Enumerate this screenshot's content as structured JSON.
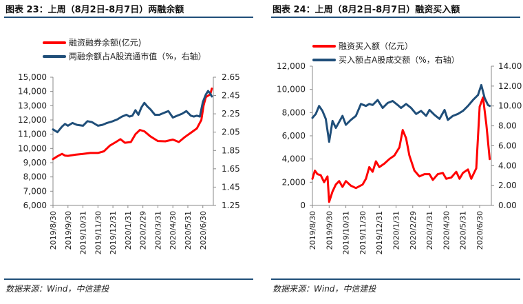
{
  "charts": [
    {
      "title": "图表 23：上周（8月2日-8月7日）两融余额",
      "source": "数据来源：Wind，中信建投",
      "chart_data": {
        "type": "line",
        "x": [
          "2019/8/30",
          "2019/9/30",
          "2019/10/31",
          "2019/11/30",
          "2019/12/31",
          "2020/1/31",
          "2020/2/29",
          "2020/3/31",
          "2020/4/30",
          "2020/5/31",
          "2020/6/30"
        ],
        "xlabels": [
          "2019/8/30",
          "2019/9/30",
          "2019/10/31",
          "2019/11/30",
          "2019/12/31",
          "2020/1/31",
          "2020/2/29",
          "2020/3/31",
          "2020/4/30",
          "2020/5/31",
          "2020/6/30"
        ],
        "yticks_left": [
          "6,000",
          "7,000",
          "8,000",
          "9,000",
          "10,000",
          "11,000",
          "12,000",
          "13,000",
          "14,000",
          "15,000"
        ],
        "yticks_right": [
          "1.25",
          "1.45",
          "1.65",
          "1.85",
          "2.05",
          "2.25",
          "2.45",
          "2.65"
        ],
        "ylim_left": [
          6000,
          15000
        ],
        "ylim_right": [
          1.25,
          2.65
        ],
        "series": [
          {
            "name": "融资融券余额(亿元)",
            "axis": "left",
            "color": "#ff0000",
            "values": [
              [
                0,
                9250
              ],
              [
                0.3,
                9450
              ],
              [
                0.6,
                9620
              ],
              [
                0.8,
                9500
              ],
              [
                1,
                9480
              ],
              [
                1.5,
                9560
              ],
              [
                2,
                9620
              ],
              [
                2.5,
                9680
              ],
              [
                3,
                9680
              ],
              [
                3.4,
                9800
              ],
              [
                3.8,
                10200
              ],
              [
                4.2,
                10450
              ],
              [
                4.5,
                10650
              ],
              [
                4.8,
                10400
              ],
              [
                5.2,
                10450
              ],
              [
                5.5,
                11000
              ],
              [
                5.8,
                11300
              ],
              [
                6.1,
                11200
              ],
              [
                6.5,
                10850
              ],
              [
                7,
                10520
              ],
              [
                7.5,
                10500
              ],
              [
                8,
                10620
              ],
              [
                8.4,
                10450
              ],
              [
                8.8,
                10800
              ],
              [
                9.2,
                11100
              ],
              [
                9.6,
                11400
              ],
              [
                9.9,
                12000
              ],
              [
                10.05,
                13000
              ],
              [
                10.2,
                13600
              ],
              [
                10.5,
                13800
              ],
              [
                10.6,
                14200
              ]
            ]
          },
          {
            "name": "两融余额占A股流通市值（%，右轴）",
            "axis": "right",
            "color": "#1f4e79",
            "values": [
              [
                0,
                2.08
              ],
              [
                0.3,
                2.05
              ],
              [
                0.6,
                2.11
              ],
              [
                0.8,
                2.14
              ],
              [
                1,
                2.12
              ],
              [
                1.3,
                2.15
              ],
              [
                1.6,
                2.13
              ],
              [
                2,
                2.12
              ],
              [
                2.3,
                2.17
              ],
              [
                2.6,
                2.16
              ],
              [
                3,
                2.12
              ],
              [
                3.3,
                2.13
              ],
              [
                3.6,
                2.15
              ],
              [
                4,
                2.17
              ],
              [
                4.3,
                2.19
              ],
              [
                4.6,
                2.22
              ],
              [
                4.9,
                2.24
              ],
              [
                5.1,
                2.22
              ],
              [
                5.3,
                2.23
              ],
              [
                5.5,
                2.29
              ],
              [
                5.7,
                2.24
              ],
              [
                5.9,
                2.32
              ],
              [
                6.1,
                2.37
              ],
              [
                6.3,
                2.33
              ],
              [
                6.5,
                2.3
              ],
              [
                6.8,
                2.24
              ],
              [
                7.1,
                2.24
              ],
              [
                7.4,
                2.26
              ],
              [
                7.7,
                2.28
              ],
              [
                8,
                2.21
              ],
              [
                8.3,
                2.23
              ],
              [
                8.6,
                2.25
              ],
              [
                8.9,
                2.28
              ],
              [
                9.2,
                2.23
              ],
              [
                9.4,
                2.22
              ],
              [
                9.6,
                2.23
              ],
              [
                9.8,
                2.22
              ],
              [
                10,
                2.38
              ],
              [
                10.2,
                2.46
              ],
              [
                10.35,
                2.5
              ],
              [
                10.5,
                2.47
              ],
              [
                10.6,
                2.44
              ]
            ]
          }
        ]
      }
    },
    {
      "title": "图表 24：上周（8月2日-8月7日）融资买入额",
      "source": "数据来源：Wind，中信建投",
      "chart_data": {
        "type": "line",
        "x": [
          "2019/8/30",
          "2019/9/30",
          "2019/10/31",
          "2019/11/30",
          "2019/12/31",
          "2020/1/31",
          "2020/2/29",
          "2020/3/31",
          "2020/4/30",
          "2020/5/31",
          "2020/6/30"
        ],
        "xlabels": [
          "2019/8/30",
          "2019/9/30",
          "2019/10/31",
          "2019/11/30",
          "2019/12/31",
          "2020/1/31",
          "2020/2/29",
          "2020/3/31",
          "2020/4/30",
          "2020/5/31",
          "2020/6/30"
        ],
        "yticks_left": [
          "0",
          "2,000",
          "4,000",
          "6,000",
          "8,000",
          "10,000",
          "12,000"
        ],
        "yticks_right": [
          "0.00",
          "2.00",
          "4.00",
          "6.00",
          "8.00",
          "10.00",
          "12.00",
          "14.00"
        ],
        "ylim_left": [
          0,
          12000
        ],
        "ylim_right": [
          0,
          14
        ],
        "series": [
          {
            "name": "融资买入额（亿元）",
            "axis": "left",
            "color": "#ff0000",
            "values": [
              [
                0,
                2300
              ],
              [
                0.15,
                3000
              ],
              [
                0.3,
                2700
              ],
              [
                0.5,
                2600
              ],
              [
                0.7,
                2000
              ],
              [
                0.9,
                2500
              ],
              [
                1,
                300
              ],
              [
                1.2,
                1200
              ],
              [
                1.4,
                1800
              ],
              [
                1.6,
                2100
              ],
              [
                1.8,
                1600
              ],
              [
                2,
                2100
              ],
              [
                2.3,
                1700
              ],
              [
                2.6,
                1500
              ],
              [
                3,
                1800
              ],
              [
                3.2,
                2300
              ],
              [
                3.4,
                3300
              ],
              [
                3.6,
                2900
              ],
              [
                3.8,
                3800
              ],
              [
                4,
                3300
              ],
              [
                4.3,
                3600
              ],
              [
                4.6,
                4000
              ],
              [
                4.9,
                4300
              ],
              [
                5.2,
                5000
              ],
              [
                5.4,
                6500
              ],
              [
                5.6,
                5800
              ],
              [
                5.8,
                4300
              ],
              [
                6.1,
                3000
              ],
              [
                6.4,
                2500
              ],
              [
                6.7,
                2700
              ],
              [
                7,
                2700
              ],
              [
                7.2,
                2200
              ],
              [
                7.5,
                2700
              ],
              [
                7.8,
                2800
              ],
              [
                8,
                2300
              ],
              [
                8.3,
                2400
              ],
              [
                8.6,
                2900
              ],
              [
                8.8,
                2300
              ],
              [
                9,
                2800
              ],
              [
                9.3,
                3100
              ],
              [
                9.5,
                2300
              ],
              [
                9.8,
                3200
              ],
              [
                10,
                8500
              ],
              [
                10.2,
                9300
              ],
              [
                10.4,
                7000
              ],
              [
                10.6,
                4000
              ]
            ]
          },
          {
            "name": "买入额占A股成交额（%，右轴）",
            "axis": "right",
            "color": "#1f4e79",
            "values": [
              [
                0,
                8.8
              ],
              [
                0.2,
                9.2
              ],
              [
                0.4,
                10.0
              ],
              [
                0.6,
                9.5
              ],
              [
                0.8,
                8.7
              ],
              [
                1,
                6.4
              ],
              [
                1.2,
                8.5
              ],
              [
                1.4,
                7.8
              ],
              [
                1.6,
                8.4
              ],
              [
                1.8,
                9.0
              ],
              [
                2,
                8.1
              ],
              [
                2.3,
                8.6
              ],
              [
                2.6,
                9.0
              ],
              [
                2.9,
                10.2
              ],
              [
                3.2,
                10.0
              ],
              [
                3.4,
                10.2
              ],
              [
                3.6,
                10.1
              ],
              [
                3.9,
                10.6
              ],
              [
                4.2,
                9.8
              ],
              [
                4.5,
                10.3
              ],
              [
                4.8,
                10.5
              ],
              [
                5.1,
                10.1
              ],
              [
                5.3,
                9.8
              ],
              [
                5.6,
                10.2
              ],
              [
                5.9,
                9.8
              ],
              [
                6.2,
                9.2
              ],
              [
                6.5,
                9.5
              ],
              [
                6.8,
                9.0
              ],
              [
                7,
                9.6
              ],
              [
                7.3,
                9.1
              ],
              [
                7.6,
                8.7
              ],
              [
                7.9,
                9.6
              ],
              [
                8.1,
                8.6
              ],
              [
                8.4,
                9.0
              ],
              [
                8.7,
                9.2
              ],
              [
                9,
                9.5
              ],
              [
                9.3,
                10.0
              ],
              [
                9.6,
                10.6
              ],
              [
                9.9,
                11.1
              ],
              [
                10.1,
                12.1
              ],
              [
                10.3,
                10.8
              ],
              [
                10.5,
                10.1
              ],
              [
                10.6,
                10.0
              ]
            ]
          }
        ]
      }
    }
  ]
}
